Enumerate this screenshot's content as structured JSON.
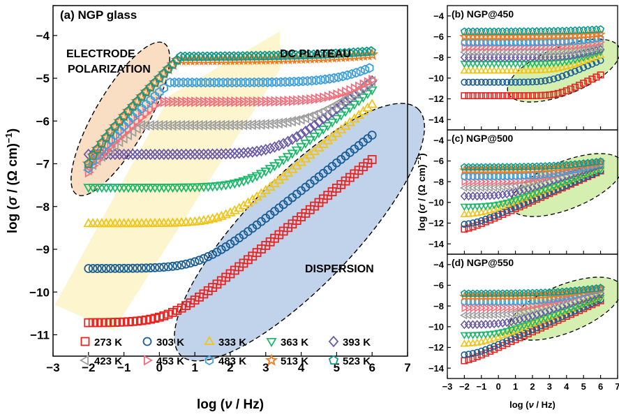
{
  "chart_data": [
    {
      "id": "a",
      "type": "scatter",
      "panel_label": "(a) NGP glass",
      "xlabel": "log (ν / Hz)",
      "ylabel": "log (σ / (Ω cm)⁻¹)",
      "xlim": [
        -3,
        7
      ],
      "ylim": [
        -11.5,
        -3.3
      ],
      "xticks": [
        -3,
        -2,
        -1,
        0,
        1,
        2,
        3,
        4,
        5,
        6,
        7
      ],
      "xtick_labels": [
        "−3",
        "−2",
        "−1",
        "0",
        "1",
        "2",
        "3",
        "4",
        "5",
        "6",
        "7"
      ],
      "yticks": [
        -11,
        -10,
        -9,
        -8,
        -7,
        -6,
        -5,
        -4
      ],
      "ytick_labels": [
        "−11",
        "−10",
        "−9",
        "−8",
        "−7",
        "−6",
        "−5",
        "−4"
      ],
      "annotations": {
        "electrode_1": "ELECTRODE",
        "electrode_2": "POLARIZATION",
        "dc_plateau": "DC PLATEAU",
        "dispersion": "DISPERSION"
      },
      "legend": [
        "273 K",
        "303 K",
        "333 K",
        "363 K",
        "393 K",
        "423 K",
        "453 K",
        "483 K",
        "513 K",
        "523 K"
      ],
      "legend_placement": "bottom",
      "series": [
        {
          "name": "273 K",
          "marker": "square",
          "color": "#e8231f",
          "dc": -10.72,
          "fc": 0.3,
          "slope": 0.67,
          "n": 0.72,
          "x": [
            -2,
            6
          ]
        },
        {
          "name": "303 K",
          "marker": "circle",
          "color": "#1a5e96",
          "dc": -9.45,
          "fc": 1.2,
          "slope": 0.65,
          "n": 0.72,
          "x": [
            -2,
            6
          ]
        },
        {
          "name": "333 K",
          "marker": "triangle-up",
          "color": "#f0c419",
          "dc": -8.4,
          "fc": 1.9,
          "slope": 0.68,
          "n": 0.72,
          "x": [
            -2,
            6
          ]
        },
        {
          "name": "363 K",
          "marker": "triangle-down",
          "color": "#1db86a",
          "dc": -7.55,
          "fc": 2.6,
          "slope": 0.67,
          "n": 0.72,
          "x": [
            -2,
            6
          ]
        },
        {
          "name": "393 K",
          "marker": "diamond",
          "color": "#6a5aa8",
          "dc": -6.78,
          "fc": 3.4,
          "slope": 0.66,
          "n": 0.72,
          "x": [
            -2,
            6
          ]
        },
        {
          "name": "423 K",
          "marker": "triangle-left",
          "color": "#9e9e9e",
          "dc": -6.1,
          "fc": 4.3,
          "slope": 0.6,
          "n": 0.72,
          "x": [
            -0.5,
            6
          ],
          "ep_start": -7.15,
          "ep_end": -0.5
        },
        {
          "name": "453 K",
          "marker": "triangle-right",
          "color": "#f2707d",
          "dc": -5.55,
          "fc": 5.2,
          "slope": 0.55,
          "n": 0.72,
          "x": [
            0,
            6
          ],
          "ep_start": -7.2,
          "ep_end": 0
        },
        {
          "name": "483 K",
          "marker": "hexagon",
          "color": "#3c9fdc",
          "dc": -5.1,
          "fc": 5.5,
          "slope": 0.5,
          "n": 0.72,
          "x": [
            0.3,
            6
          ],
          "ep_start": -7.1,
          "ep_end": 0.3
        },
        {
          "name": "513 K",
          "marker": "star",
          "color": "#ee7a22",
          "dc": -4.58,
          "fc": 7,
          "slope": 0.2,
          "n": 0.72,
          "x": [
            0.5,
            6
          ],
          "ep_start": -7.0,
          "ep_end": 0.5
        },
        {
          "name": "523 K",
          "marker": "pentagon",
          "color": "#0e9a8a",
          "dc": -4.5,
          "fc": 7,
          "slope": 0.2,
          "n": 0.72,
          "x": [
            0.6,
            6
          ],
          "ep_start": -7.0,
          "ep_end": 0.6
        }
      ]
    },
    {
      "id": "b",
      "type": "scatter",
      "panel_label": "(b) NGP@450",
      "xlim": [
        -3,
        7
      ],
      "ylim": [
        -15,
        -3
      ],
      "yticks": [
        -14,
        -12,
        -10,
        -8,
        -6,
        -4
      ],
      "ytick_labels": [
        "−14",
        "−12",
        "−10",
        "−8",
        "−6",
        "−4"
      ],
      "series": [
        {
          "name": "273 K",
          "dc": -11.7,
          "fc": 3.5,
          "slope": 0.8
        },
        {
          "name": "303 K",
          "dc": -10.4,
          "fc": 3.0,
          "slope": 0.7
        },
        {
          "name": "333 K",
          "dc": -9.3,
          "fc": 3.5,
          "slope": 0.6
        },
        {
          "name": "363 K",
          "dc": -8.6,
          "fc": 4,
          "slope": 0.55
        },
        {
          "name": "393 K",
          "dc": -8.0,
          "fc": 4.5,
          "slope": 0.5
        },
        {
          "name": "423 K",
          "dc": -7.5,
          "fc": 5,
          "slope": 0.45
        },
        {
          "name": "453 K",
          "dc": -7.0,
          "fc": 5,
          "slope": 0.4
        },
        {
          "name": "483 K",
          "dc": -6.6,
          "fc": 5,
          "slope": 0.35
        },
        {
          "name": "513 K",
          "dc": -6.0,
          "fc": 6,
          "slope": 0.2
        },
        {
          "name": "523 K",
          "dc": -5.5,
          "fc": 6,
          "slope": 0.2
        }
      ]
    },
    {
      "id": "c",
      "type": "scatter",
      "panel_label": "(c) NGP@500",
      "ylabel": "log (σ / (Ω cm)⁻¹)",
      "xlim": [
        -3,
        7
      ],
      "ylim": [
        -15,
        -3
      ],
      "yticks": [
        -14,
        -12,
        -10,
        -8,
        -6,
        -4
      ],
      "ytick_labels": [
        "−14",
        "−12",
        "−10",
        "−8",
        "−6",
        "−4"
      ],
      "series": [
        {
          "name": "273 K",
          "dc": -12.8,
          "fc": -2,
          "slope": 0.73
        },
        {
          "name": "303 K",
          "dc": -12.2,
          "fc": -1.5,
          "slope": 0.7
        },
        {
          "name": "333 K",
          "dc": -11.2,
          "fc": -1,
          "slope": 0.65
        },
        {
          "name": "363 K",
          "dc": -10.4,
          "fc": 0,
          "slope": 0.6
        },
        {
          "name": "393 K",
          "dc": -9.4,
          "fc": 0.5,
          "slope": 0.55
        },
        {
          "name": "423 K",
          "dc": -8.6,
          "fc": 1,
          "slope": 0.5
        },
        {
          "name": "453 K",
          "dc": -8.0,
          "fc": 2,
          "slope": 0.45
        },
        {
          "name": "483 K",
          "dc": -7.5,
          "fc": 3,
          "slope": 0.4
        },
        {
          "name": "513 K",
          "dc": -6.9,
          "fc": 3.5,
          "slope": 0.3
        },
        {
          "name": "523 K",
          "dc": -6.6,
          "fc": 4,
          "slope": 0.25
        }
      ]
    },
    {
      "id": "d",
      "type": "scatter",
      "panel_label": "(d) NGP@550",
      "xlabel": "log (ν / Hz)",
      "xlim": [
        -3,
        7
      ],
      "ylim": [
        -15,
        -3
      ],
      "xticks": [
        -3,
        -2,
        -1,
        0,
        1,
        2,
        3,
        4,
        5,
        6,
        7
      ],
      "xtick_labels": [
        "−3",
        "−2",
        "−1",
        "0",
        "1",
        "2",
        "3",
        "4",
        "5",
        "6",
        "7"
      ],
      "yticks": [
        -14,
        -12,
        -10,
        -8,
        -6,
        -4
      ],
      "ytick_labels": [
        "−14",
        "−12",
        "−10",
        "−8",
        "−6",
        "−4"
      ],
      "series": [
        {
          "name": "273 K",
          "dc": -13.5,
          "fc": -2,
          "slope": 0.75
        },
        {
          "name": "303 K",
          "dc": -12.8,
          "fc": -1.5,
          "slope": 0.72
        },
        {
          "name": "333 K",
          "dc": -11.7,
          "fc": -1,
          "slope": 0.66
        },
        {
          "name": "363 K",
          "dc": -10.8,
          "fc": 0,
          "slope": 0.6
        },
        {
          "name": "393 K",
          "dc": -9.8,
          "fc": 0.5,
          "slope": 0.55
        },
        {
          "name": "423 K",
          "dc": -8.9,
          "fc": 1,
          "slope": 0.5
        },
        {
          "name": "453 K",
          "dc": -8.2,
          "fc": 2,
          "slope": 0.45
        },
        {
          "name": "483 K",
          "dc": -7.6,
          "fc": 3,
          "slope": 0.4
        },
        {
          "name": "513 K",
          "dc": -7.1,
          "fc": 3.5,
          "slope": 0.3
        },
        {
          "name": "523 K",
          "dc": -6.8,
          "fc": 4,
          "slope": 0.25
        }
      ]
    }
  ]
}
